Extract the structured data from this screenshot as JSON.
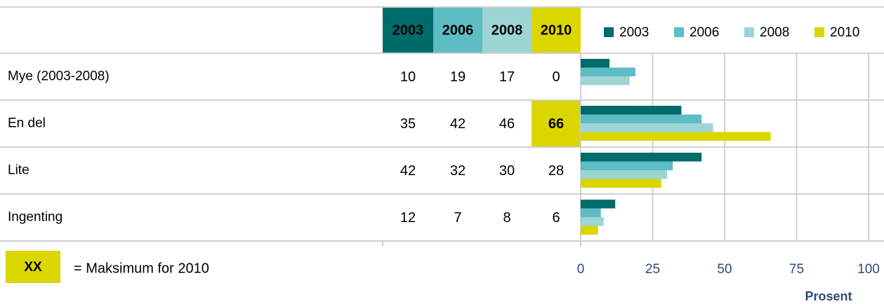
{
  "chart_data": {
    "type": "bar",
    "orientation": "horizontal",
    "categories": [
      "Mye (2003-2008)",
      "En del",
      "Lite",
      "Ingenting"
    ],
    "series": [
      {
        "name": "2003",
        "color": "#006b6b",
        "values": [
          10,
          35,
          42,
          12
        ]
      },
      {
        "name": "2006",
        "color": "#5dbcc4",
        "values": [
          19,
          42,
          32,
          7
        ]
      },
      {
        "name": "2008",
        "color": "#9dd4d4",
        "values": [
          17,
          46,
          30,
          8
        ]
      },
      {
        "name": "2010",
        "color": "#dbd600",
        "values": [
          0,
          66,
          28,
          6
        ]
      }
    ],
    "xlim": [
      0,
      100
    ],
    "xticks": [
      0,
      25,
      50,
      75,
      100
    ],
    "grid": true,
    "xlabel": "Prosent",
    "legend": "top-right",
    "highlight": {
      "series": 3,
      "rule": "max",
      "sample": "XX",
      "label": "= Maksimum for 2010"
    }
  }
}
